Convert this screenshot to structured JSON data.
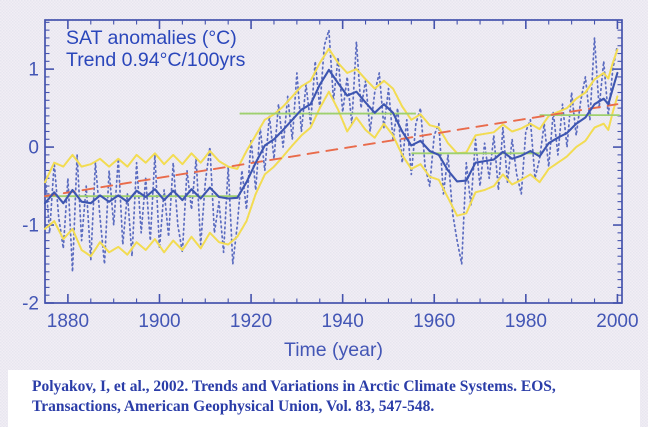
{
  "caption": {
    "line1": "Polyakov, I, et al., 2002. Trends and Variations in Arctic Climate Systems. EOS,",
    "line2": "Transactions, American Geophysical Union, Vol. 83, 547-548."
  },
  "colors": {
    "background": "#edebf2",
    "axis": "#4553ad",
    "tick_label": "#4356b5",
    "title_text": "#2b47bb",
    "caption_text": "#2b3da8",
    "annual_dotted": "#5b6cc0",
    "smoothed_line": "#3d55b0",
    "confidence_band": "#f2dc52",
    "trend_line": "#e96b4b",
    "regime_steps": "#9ed06e"
  },
  "chart_data": {
    "type": "line",
    "title": "SAT anomalies (°C)",
    "subtitle": "Trend 0.94°C/100yrs",
    "xlabel": "Time (year)",
    "ylabel": "",
    "xlim": [
      1875,
      2001
    ],
    "ylim": [
      -2,
      1.63
    ],
    "x_major_ticks": [
      1880,
      1900,
      1920,
      1940,
      1960,
      1980,
      2000
    ],
    "x_minor_step": 5,
    "y_major_ticks": [
      -2,
      -1,
      0,
      1
    ],
    "y_minor_step": 0.1,
    "grid": false,
    "legend": "none",
    "grid_x": [
      1875,
      1877,
      1879,
      1881,
      1883,
      1885,
      1887,
      1889,
      1891,
      1893,
      1895,
      1897,
      1899,
      1901,
      1903,
      1905,
      1907,
      1909,
      1911,
      1913,
      1915,
      1917,
      1919,
      1921,
      1923,
      1925,
      1927,
      1929,
      1931,
      1933,
      1935,
      1937,
      1939,
      1941,
      1943,
      1945,
      1947,
      1949,
      1951,
      1953,
      1955,
      1957,
      1959,
      1961,
      1963,
      1965,
      1967,
      1969,
      1971,
      1973,
      1975,
      1977,
      1979,
      1981,
      1983,
      1985,
      1987,
      1989,
      1991,
      1993,
      1995,
      1997,
      1998,
      1999,
      2000
    ],
    "series": [
      {
        "name": "annual-anomaly",
        "style": "dotted",
        "color": "#5b6cc0",
        "width": 1.7,
        "x_start": 1875,
        "x_step": 1,
        "values": [
          -0.3,
          -1.1,
          -0.2,
          -0.9,
          -1.3,
          -0.4,
          -1.6,
          -0.1,
          -1.2,
          -0.5,
          -1.45,
          -0.2,
          -0.9,
          -1.5,
          -0.3,
          -1.0,
          -0.15,
          -1.25,
          -0.6,
          -1.4,
          -0.2,
          -1.1,
          -0.4,
          -1.2,
          -0.1,
          -1.3,
          -0.55,
          -1.15,
          -0.2,
          -1.0,
          -1.35,
          -0.3,
          -0.8,
          -0.15,
          -1.25,
          -0.45,
          0.0,
          -1.1,
          -0.7,
          -1.35,
          -0.25,
          -1.5,
          -1.0,
          -0.3,
          -0.8,
          0.1,
          -0.55,
          0.25,
          -0.3,
          0.4,
          -0.15,
          0.55,
          0.0,
          0.65,
          0.1,
          0.95,
          0.2,
          0.8,
          0.3,
          1.1,
          0.5,
          1.3,
          1.5,
          0.6,
          1.15,
          0.45,
          0.9,
          0.3,
          1.35,
          0.5,
          0.85,
          0.2,
          0.7,
          0.95,
          0.25,
          0.75,
          0.1,
          0.5,
          -0.2,
          0.35,
          -0.35,
          0.3,
          0.5,
          -0.25,
          -0.5,
          0.15,
          0.3,
          -0.6,
          -0.1,
          -0.85,
          -1.2,
          -1.5,
          -0.2,
          -0.75,
          0.1,
          -0.5,
          0.05,
          -0.4,
          0.15,
          -0.55,
          0.25,
          -0.45,
          0.1,
          -0.35,
          -0.6,
          0.2,
          0.35,
          -0.4,
          -0.15,
          0.3,
          -0.25,
          0.45,
          -0.1,
          0.55,
          0.0,
          0.7,
          0.15,
          0.6,
          0.9,
          0.35,
          1.4,
          0.5,
          1.1,
          0.4,
          1.0,
          1.3
        ]
      },
      {
        "name": "upper-confidence",
        "style": "solid",
        "color": "#f2dc52",
        "width": 2,
        "values": [
          -0.45,
          -0.2,
          -0.25,
          -0.1,
          -0.25,
          -0.22,
          -0.15,
          -0.25,
          -0.15,
          -0.25,
          -0.1,
          -0.2,
          -0.08,
          -0.22,
          -0.1,
          -0.22,
          -0.08,
          -0.2,
          -0.05,
          -0.18,
          -0.25,
          -0.28,
          -0.05,
          0.15,
          0.35,
          0.42,
          0.52,
          0.65,
          0.78,
          0.85,
          1.08,
          1.26,
          1.08,
          0.95,
          1.0,
          0.87,
          0.75,
          0.85,
          0.75,
          0.52,
          0.35,
          0.42,
          0.28,
          0.25,
          0.05,
          -0.08,
          -0.07,
          0.15,
          0.17,
          0.19,
          0.29,
          0.2,
          0.24,
          0.3,
          0.23,
          0.4,
          0.45,
          0.5,
          0.62,
          0.7,
          0.87,
          0.95,
          0.88,
          1.08,
          1.25
        ]
      },
      {
        "name": "lower-confidence",
        "style": "solid",
        "color": "#f2dc52",
        "width": 2,
        "values": [
          -1.05,
          -0.95,
          -1.18,
          -1.05,
          -1.32,
          -1.4,
          -1.22,
          -1.35,
          -1.28,
          -1.38,
          -1.22,
          -1.32,
          -1.18,
          -1.35,
          -1.2,
          -1.32,
          -1.15,
          -1.3,
          -1.1,
          -1.22,
          -1.25,
          -1.15,
          -0.95,
          -0.6,
          -0.35,
          -0.25,
          -0.12,
          0.02,
          0.15,
          0.25,
          0.5,
          0.71,
          0.48,
          0.2,
          0.38,
          0.22,
          0.12,
          0.3,
          0.15,
          -0.1,
          -0.28,
          -0.22,
          -0.38,
          -0.42,
          -0.65,
          -0.88,
          -0.85,
          -0.58,
          -0.55,
          -0.5,
          -0.35,
          -0.48,
          -0.42,
          -0.35,
          -0.45,
          -0.28,
          -0.2,
          -0.12,
          0.0,
          0.08,
          0.25,
          0.3,
          0.22,
          0.45,
          0.65
        ]
      },
      {
        "name": "regime-mean-steps",
        "style": "segments",
        "color": "#9ed06e",
        "width": 1.8,
        "segments": [
          {
            "x1": 1875,
            "x2": 1917.5,
            "y": -0.63
          },
          {
            "x1": 1917.5,
            "x2": 1956,
            "y": 0.43
          },
          {
            "x1": 1955,
            "x2": 1983,
            "y": -0.08
          },
          {
            "x1": 1983,
            "x2": 2000.5,
            "y": 0.41
          }
        ]
      },
      {
        "name": "linear-trend",
        "style": "dashed",
        "color": "#e96b4b",
        "width": 1.9,
        "x": [
          1875,
          2000
        ],
        "values": [
          -0.63,
          0.55
        ]
      },
      {
        "name": "smoothed-anomaly",
        "style": "solid",
        "color": "#3d55b0",
        "width": 2.1,
        "values": [
          -0.72,
          -0.58,
          -0.72,
          -0.55,
          -0.7,
          -0.72,
          -0.62,
          -0.7,
          -0.62,
          -0.7,
          -0.56,
          -0.64,
          -0.54,
          -0.68,
          -0.56,
          -0.68,
          -0.54,
          -0.66,
          -0.52,
          -0.64,
          -0.66,
          -0.65,
          -0.45,
          -0.2,
          0.02,
          0.1,
          0.22,
          0.35,
          0.48,
          0.55,
          0.8,
          0.99,
          0.82,
          0.66,
          0.71,
          0.57,
          0.44,
          0.55,
          0.44,
          0.2,
          0.02,
          0.08,
          -0.05,
          -0.1,
          -0.3,
          -0.44,
          -0.43,
          -0.2,
          -0.18,
          -0.16,
          -0.06,
          -0.15,
          -0.11,
          -0.05,
          -0.12,
          0.05,
          0.12,
          0.18,
          0.3,
          0.38,
          0.55,
          0.62,
          0.55,
          0.75,
          0.95
        ]
      }
    ]
  }
}
